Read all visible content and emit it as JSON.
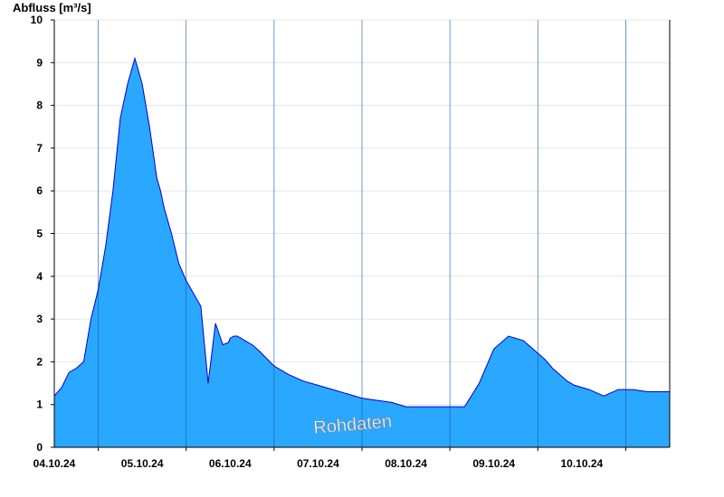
{
  "chart_data": {
    "type": "area",
    "title": "",
    "ylabel": "Abfluss [m³/s]",
    "xlabel": "",
    "ylim": [
      0,
      10
    ],
    "yticks": [
      0,
      1,
      2,
      3,
      4,
      5,
      6,
      7,
      8,
      9,
      10
    ],
    "xlim": [
      "2024-10-03T12:00",
      "2024-10-10T12:00"
    ],
    "xticks": [
      "04.10.24",
      "05.10.24",
      "06.10.24",
      "07.10.24",
      "08.10.24",
      "09.10.24",
      "10.10.24"
    ],
    "grid": true,
    "fill_color": "#2aa7ff",
    "line_color": "#0000cc",
    "watermark": "Rohdaten",
    "series": [
      {
        "x": [
          "2024-10-03T12:00",
          "2024-10-03T14:00",
          "2024-10-03T16:00",
          "2024-10-03T18:00",
          "2024-10-03T20:00",
          "2024-10-03T22:00",
          "2024-10-04T00:00",
          "2024-10-04T02:00",
          "2024-10-04T04:00",
          "2024-10-04T06:00",
          "2024-10-04T08:00",
          "2024-10-04T10:00",
          "2024-10-04T12:00",
          "2024-10-04T14:00",
          "2024-10-04T16:00",
          "2024-10-04T17:00",
          "2024-10-04T18:00",
          "2024-10-04T20:00",
          "2024-10-04T22:00",
          "2024-10-05T00:00",
          "2024-10-05T02:00",
          "2024-10-05T04:00",
          "2024-10-05T06:00",
          "2024-10-05T08:00",
          "2024-10-05T10:00",
          "2024-10-05T11:30",
          "2024-10-05T12:00",
          "2024-10-05T13:00",
          "2024-10-05T14:00",
          "2024-10-05T16:00",
          "2024-10-05T18:00",
          "2024-10-05T20:00",
          "2024-10-06T00:00",
          "2024-10-06T04:00",
          "2024-10-06T08:00",
          "2024-10-06T12:00",
          "2024-10-06T16:00",
          "2024-10-06T20:00",
          "2024-10-07T00:00",
          "2024-10-07T04:00",
          "2024-10-07T08:00",
          "2024-10-07T12:00",
          "2024-10-07T16:00",
          "2024-10-07T20:00",
          "2024-10-08T00:00",
          "2024-10-08T04:00",
          "2024-10-08T08:00",
          "2024-10-08T12:00",
          "2024-10-08T16:00",
          "2024-10-08T20:00",
          "2024-10-09T00:00",
          "2024-10-09T02:00",
          "2024-10-09T04:00",
          "2024-10-09T06:00",
          "2024-10-09T08:00",
          "2024-10-09T10:00",
          "2024-10-09T14:00",
          "2024-10-09T18:00",
          "2024-10-09T22:00",
          "2024-10-10T02:00",
          "2024-10-10T06:00",
          "2024-10-10T08:00",
          "2024-10-10T12:00"
        ],
        "values": [
          1.2,
          1.4,
          1.75,
          1.85,
          2.0,
          3.0,
          3.7,
          4.7,
          6.0,
          7.7,
          8.5,
          9.1,
          8.5,
          7.5,
          6.3,
          6.0,
          5.6,
          5.0,
          4.3,
          3.9,
          3.6,
          3.3,
          1.5,
          2.9,
          2.4,
          2.45,
          2.55,
          2.6,
          2.6,
          2.5,
          2.4,
          2.25,
          1.9,
          1.7,
          1.55,
          1.45,
          1.35,
          1.25,
          1.15,
          1.1,
          1.05,
          0.95,
          0.95,
          0.95,
          0.95,
          0.95,
          1.5,
          2.3,
          2.6,
          2.5,
          2.2,
          2.05,
          1.85,
          1.7,
          1.55,
          1.45,
          1.35,
          1.2,
          1.35,
          1.35,
          1.3,
          1.3,
          1.3
        ]
      }
    ]
  }
}
